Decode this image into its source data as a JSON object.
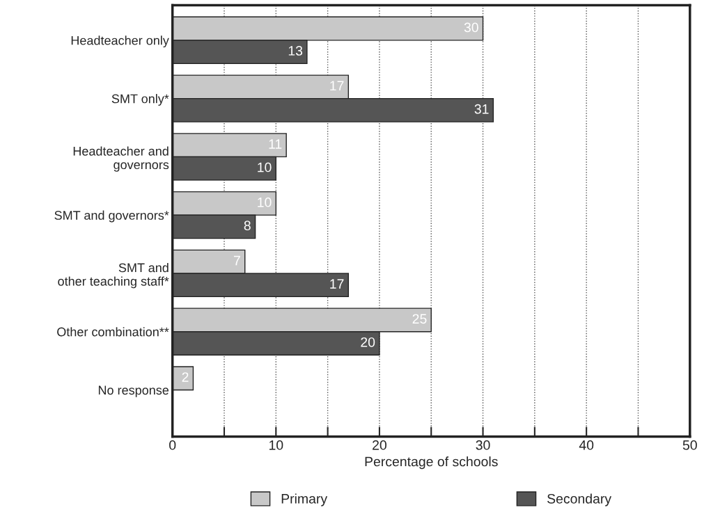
{
  "chart_data": {
    "type": "bar",
    "orientation": "horizontal",
    "xlabel": "Percentage of schools",
    "categories": [
      "Headteacher only",
      "SMT only*",
      "Headteacher and\ngovernors",
      "SMT and governors*",
      "SMT and\nother teaching staff*",
      "Other combination**",
      "No response"
    ],
    "series": [
      {
        "name": "Primary",
        "color": "#c8c8c8",
        "values": [
          30,
          17,
          11,
          10,
          7,
          25,
          2
        ]
      },
      {
        "name": "Secondary",
        "color": "#555555",
        "values": [
          13,
          31,
          10,
          8,
          17,
          20,
          null
        ]
      }
    ],
    "xlim": [
      0,
      50
    ],
    "xticks": [
      0,
      {
        "value": 5,
        "label": null
      },
      10,
      {
        "value": 15,
        "label": null
      },
      20,
      {
        "value": 25,
        "label": null
      },
      30,
      {
        "value": 35,
        "label": null
      },
      40,
      {
        "value": 45,
        "label": null
      },
      50
    ],
    "grid": "x",
    "legend": "bottom",
    "data_labels": true
  }
}
